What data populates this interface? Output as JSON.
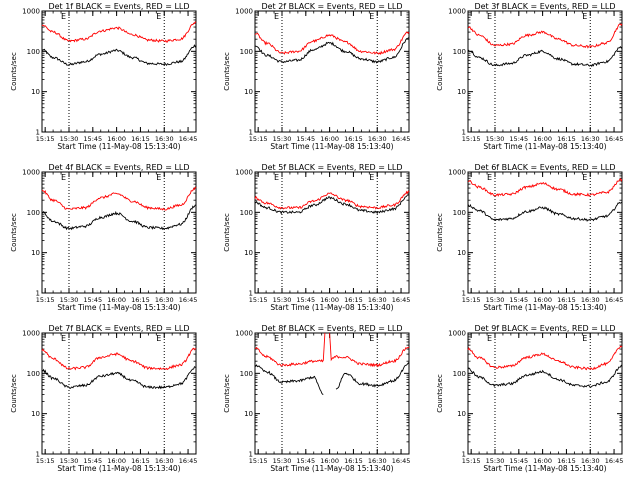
{
  "figure": {
    "ylabel": "Counts/sec",
    "xlabel": "Start Time (11-May-08 15:13:40)",
    "xticks": [
      "15:15",
      "15:30",
      "15:45",
      "16:00",
      "16:15",
      "16:30",
      "16:45"
    ],
    "yticks": [
      "1",
      "10",
      "100",
      "1000"
    ],
    "marker_start": "E",
    "marker_end": "E",
    "colors": {
      "events": "#000000",
      "lld": "#ff0000",
      "axes": "#000000"
    }
  },
  "chart_data": [
    {
      "type": "line",
      "title": "Det 1f BLACK = Events, RED = LLD",
      "xlim": [
        "15:13",
        "16:50"
      ],
      "ylim": [
        1,
        1000
      ],
      "yscale": "log",
      "markers": [
        "15:30",
        "16:30"
      ],
      "series": [
        {
          "name": "BLACK = Events",
          "x": [
            "15:13",
            "15:20",
            "15:30",
            "15:40",
            "15:50",
            "16:00",
            "16:10",
            "16:20",
            "16:30",
            "16:40",
            "16:50"
          ],
          "values": [
            110,
            70,
            47,
            55,
            85,
            105,
            70,
            50,
            48,
            55,
            140
          ]
        },
        {
          "name": "RED = LLD",
          "x": [
            "15:13",
            "15:20",
            "15:30",
            "15:40",
            "15:50",
            "16:00",
            "16:10",
            "16:20",
            "16:30",
            "16:40",
            "16:50"
          ],
          "values": [
            450,
            300,
            180,
            200,
            320,
            380,
            260,
            190,
            180,
            200,
            520
          ]
        }
      ]
    },
    {
      "type": "line",
      "title": "Det 2f BLACK = Events, RED = LLD",
      "xlim": [
        "15:13",
        "16:50"
      ],
      "ylim": [
        1,
        1000
      ],
      "yscale": "log",
      "markers": [
        "15:30",
        "16:30"
      ],
      "series": [
        {
          "name": "BLACK = Events",
          "x": [
            "15:13",
            "15:20",
            "15:30",
            "15:40",
            "15:50",
            "16:00",
            "16:10",
            "16:20",
            "16:30",
            "16:40",
            "16:50"
          ],
          "values": [
            140,
            80,
            55,
            60,
            110,
            160,
            100,
            65,
            55,
            70,
            210
          ]
        },
        {
          "name": "RED = LLD",
          "x": [
            "15:13",
            "15:20",
            "15:30",
            "15:40",
            "15:50",
            "16:00",
            "16:10",
            "16:20",
            "16:30",
            "16:40",
            "16:50"
          ],
          "values": [
            280,
            160,
            90,
            100,
            180,
            250,
            170,
            100,
            90,
            110,
            300
          ]
        }
      ]
    },
    {
      "type": "line",
      "title": "Det 3f BLACK = Events, RED = LLD",
      "xlim": [
        "15:13",
        "16:50"
      ],
      "ylim": [
        1,
        1000
      ],
      "yscale": "log",
      "markers": [
        "15:30",
        "16:30"
      ],
      "series": [
        {
          "name": "BLACK = Events",
          "x": [
            "15:13",
            "15:20",
            "15:30",
            "15:40",
            "15:50",
            "16:00",
            "16:10",
            "16:20",
            "16:30",
            "16:40",
            "16:50"
          ],
          "values": [
            110,
            70,
            45,
            50,
            80,
            100,
            65,
            48,
            45,
            55,
            130
          ]
        },
        {
          "name": "RED = LLD",
          "x": [
            "15:13",
            "15:20",
            "15:30",
            "15:40",
            "15:50",
            "16:00",
            "16:10",
            "16:20",
            "16:30",
            "16:40",
            "16:50"
          ],
          "values": [
            400,
            250,
            140,
            150,
            250,
            300,
            200,
            140,
            130,
            160,
            480
          ]
        }
      ]
    },
    {
      "type": "line",
      "title": "Det 4f BLACK = Events, RED = LLD",
      "xlim": [
        "15:13",
        "16:50"
      ],
      "ylim": [
        1,
        1000
      ],
      "yscale": "log",
      "markers": [
        "15:30",
        "16:30"
      ],
      "series": [
        {
          "name": "BLACK = Events",
          "x": [
            "15:13",
            "15:20",
            "15:30",
            "15:40",
            "15:50",
            "16:00",
            "16:10",
            "16:20",
            "16:30",
            "16:40",
            "16:50"
          ],
          "values": [
            100,
            60,
            40,
            45,
            75,
            95,
            60,
            42,
            40,
            50,
            150
          ]
        },
        {
          "name": "RED = LLD",
          "x": [
            "15:13",
            "15:20",
            "15:30",
            "15:40",
            "15:50",
            "16:00",
            "16:10",
            "16:20",
            "16:30",
            "16:40",
            "16:50"
          ],
          "values": [
            350,
            200,
            120,
            130,
            230,
            290,
            190,
            130,
            120,
            150,
            400
          ]
        }
      ]
    },
    {
      "type": "line",
      "title": "Det 5f BLACK = Events, RED = LLD",
      "xlim": [
        "15:13",
        "16:50"
      ],
      "ylim": [
        1,
        1000
      ],
      "yscale": "log",
      "markers": [
        "15:30",
        "16:30"
      ],
      "series": [
        {
          "name": "BLACK = Events",
          "x": [
            "15:13",
            "15:20",
            "15:30",
            "15:40",
            "15:50",
            "16:00",
            "16:10",
            "16:20",
            "16:30",
            "16:40",
            "16:50"
          ],
          "values": [
            180,
            130,
            100,
            100,
            150,
            230,
            160,
            110,
            100,
            120,
            260
          ]
        },
        {
          "name": "RED = LLD",
          "x": [
            "15:13",
            "15:20",
            "15:30",
            "15:40",
            "15:50",
            "16:00",
            "16:10",
            "16:20",
            "16:30",
            "16:40",
            "16:50"
          ],
          "values": [
            230,
            170,
            130,
            130,
            190,
            290,
            200,
            140,
            130,
            150,
            320
          ]
        }
      ]
    },
    {
      "type": "line",
      "title": "Det 6f BLACK = Events, RED = LLD",
      "xlim": [
        "15:13",
        "16:50"
      ],
      "ylim": [
        1,
        1000
      ],
      "yscale": "log",
      "markers": [
        "15:30",
        "16:30"
      ],
      "series": [
        {
          "name": "BLACK = Events",
          "x": [
            "15:13",
            "15:20",
            "15:30",
            "15:40",
            "15:50",
            "16:00",
            "16:10",
            "16:20",
            "16:30",
            "16:40",
            "16:50"
          ],
          "values": [
            150,
            110,
            65,
            70,
            105,
            130,
            90,
            70,
            65,
            80,
            180
          ]
        },
        {
          "name": "RED = LLD",
          "x": [
            "15:13",
            "15:20",
            "15:30",
            "15:40",
            "15:50",
            "16:00",
            "16:10",
            "16:20",
            "16:30",
            "16:40",
            "16:50"
          ],
          "values": [
            600,
            420,
            270,
            280,
            420,
            520,
            370,
            280,
            270,
            310,
            650
          ]
        }
      ]
    },
    {
      "type": "line",
      "title": "Det 7f BLACK = Events, RED = LLD",
      "xlim": [
        "15:13",
        "16:50"
      ],
      "ylim": [
        1,
        1000
      ],
      "yscale": "log",
      "markers": [
        "15:30",
        "16:30"
      ],
      "series": [
        {
          "name": "BLACK = Events",
          "x": [
            "15:13",
            "15:20",
            "15:30",
            "15:40",
            "15:50",
            "16:00",
            "16:10",
            "16:20",
            "16:30",
            "16:40",
            "16:50"
          ],
          "values": [
            120,
            75,
            45,
            50,
            85,
            100,
            65,
            45,
            45,
            55,
            140
          ]
        },
        {
          "name": "RED = LLD",
          "x": [
            "15:13",
            "15:20",
            "15:30",
            "15:40",
            "15:50",
            "16:00",
            "16:10",
            "16:20",
            "16:30",
            "16:40",
            "16:50"
          ],
          "values": [
            380,
            230,
            130,
            140,
            250,
            300,
            200,
            135,
            130,
            160,
            420
          ]
        }
      ]
    },
    {
      "type": "line",
      "title": "Det 8f BLACK = Events, RED = LLD",
      "xlim": [
        "15:13",
        "16:50"
      ],
      "ylim": [
        1,
        1000
      ],
      "yscale": "log",
      "markers": [
        "15:30",
        "16:30"
      ],
      "series": [
        {
          "name": "BLACK = Events",
          "x": [
            "15:13",
            "15:20",
            "15:30",
            "15:40",
            "15:50",
            "15:56",
            "15:58",
            "16:04",
            "16:10",
            "16:20",
            "16:30",
            "16:40",
            "16:50"
          ],
          "values": [
            160,
            110,
            60,
            65,
            80,
            30,
            null,
            40,
            100,
            55,
            50,
            65,
            170
          ]
        },
        {
          "name": "RED = LLD",
          "x": [
            "15:13",
            "15:20",
            "15:30",
            "15:40",
            "15:50",
            "15:56",
            "15:57",
            "15:58",
            "16:00",
            "16:01",
            "16:04",
            "16:10",
            "16:20",
            "16:30",
            "16:40",
            "16:50"
          ],
          "values": [
            420,
            260,
            160,
            170,
            200,
            200,
            1000,
            null,
            1000,
            220,
            260,
            250,
            170,
            160,
            200,
            450
          ]
        }
      ]
    },
    {
      "type": "line",
      "title": "Det 9f BLACK = Events, RED = LLD",
      "xlim": [
        "15:13",
        "16:50"
      ],
      "ylim": [
        1,
        1000
      ],
      "yscale": "log",
      "markers": [
        "15:30",
        "16:30"
      ],
      "series": [
        {
          "name": "BLACK = Events",
          "x": [
            "15:13",
            "15:20",
            "15:30",
            "15:40",
            "15:50",
            "16:00",
            "16:10",
            "16:20",
            "16:30",
            "16:40",
            "16:50"
          ],
          "values": [
            130,
            80,
            50,
            55,
            90,
            110,
            70,
            50,
            48,
            60,
            150
          ]
        },
        {
          "name": "RED = LLD",
          "x": [
            "15:13",
            "15:20",
            "15:30",
            "15:40",
            "15:50",
            "16:00",
            "16:10",
            "16:20",
            "16:30",
            "16:40",
            "16:50"
          ],
          "values": [
            400,
            240,
            140,
            150,
            250,
            300,
            200,
            140,
            130,
            170,
            480
          ]
        }
      ]
    }
  ]
}
